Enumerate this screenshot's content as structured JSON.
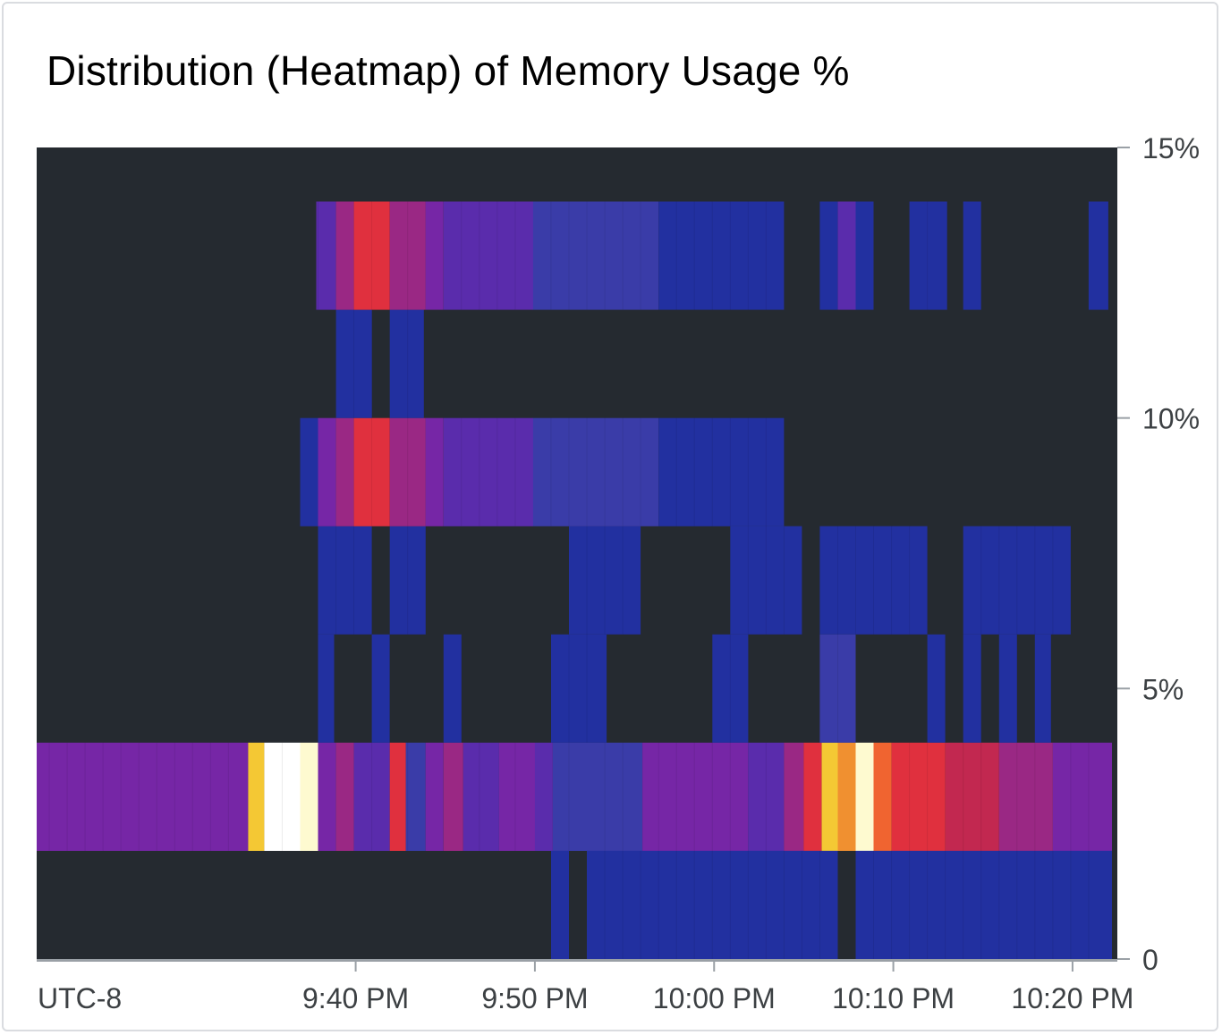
{
  "card": {
    "title": "Distribution (Heatmap) of Memory Usage %"
  },
  "chart_data": {
    "type": "heatmap",
    "title": "Distribution (Heatmap) of Memory Usage %",
    "timezone_label": "UTC-8",
    "x_unit": "minutes since 9:40 PM",
    "x_range": [
      -17.8,
      42.5
    ],
    "x_ticks": [
      {
        "value": 0,
        "label": "9:40 PM"
      },
      {
        "value": 10,
        "label": "9:50 PM"
      },
      {
        "value": 20,
        "label": "10:00 PM"
      },
      {
        "value": 30,
        "label": "10:10 PM"
      },
      {
        "value": 40,
        "label": "10:20 PM"
      }
    ],
    "y_range": [
      0,
      15
    ],
    "y_ticks": [
      {
        "value": 0,
        "label": "0"
      },
      {
        "value": 5,
        "label": "5%"
      },
      {
        "value": 10,
        "label": "10%"
      },
      {
        "value": 15,
        "label": "15%"
      }
    ],
    "y_bins": [
      [
        0,
        2
      ],
      [
        2,
        4
      ],
      [
        4,
        6
      ],
      [
        6,
        8
      ],
      [
        8,
        10
      ],
      [
        10,
        12
      ],
      [
        12,
        14
      ]
    ],
    "colors": {
      "background": "#252a30",
      "axis": "#9aa0a6",
      "blue": "#2230a0",
      "indigo": "#3a3ca8",
      "violet": "#5a2cac",
      "purple": "#7626a6",
      "magenta": "#9a2884",
      "crimson": "#c22850",
      "red": "#e0303e",
      "orange": "#f06430",
      "amber": "#f09030",
      "yellow": "#f4c834",
      "cream": "#fefad0",
      "white": "#ffffff"
    },
    "cells": [
      {
        "bin": 1,
        "x0": -17.8,
        "x1": -6.0,
        "color": "purple"
      },
      {
        "bin": 1,
        "x0": -6.0,
        "x1": -5.1,
        "color": "yellow"
      },
      {
        "bin": 1,
        "x0": -5.1,
        "x1": -3.1,
        "color": "white"
      },
      {
        "bin": 1,
        "x0": -3.1,
        "x1": -2.1,
        "color": "cream"
      },
      {
        "bin": 1,
        "x0": -2.1,
        "x1": -1.1,
        "color": "purple"
      },
      {
        "bin": 1,
        "x0": -1.1,
        "x1": -0.1,
        "color": "magenta"
      },
      {
        "bin": 1,
        "x0": -0.1,
        "x1": 1.9,
        "color": "violet"
      },
      {
        "bin": 1,
        "x0": 1.9,
        "x1": 2.8,
        "color": "red"
      },
      {
        "bin": 1,
        "x0": 2.8,
        "x1": 3.9,
        "color": "indigo"
      },
      {
        "bin": 1,
        "x0": 3.9,
        "x1": 4.9,
        "color": "purple"
      },
      {
        "bin": 1,
        "x0": 4.9,
        "x1": 6.0,
        "color": "magenta"
      },
      {
        "bin": 1,
        "x0": 6.0,
        "x1": 8.0,
        "color": "violet"
      },
      {
        "bin": 1,
        "x0": 8.0,
        "x1": 10.0,
        "color": "purple"
      },
      {
        "bin": 1,
        "x0": 10.0,
        "x1": 11.0,
        "color": "violet"
      },
      {
        "bin": 1,
        "x0": 11.0,
        "x1": 13.0,
        "color": "indigo"
      },
      {
        "bin": 1,
        "x0": 13.0,
        "x1": 16.0,
        "color": "indigo"
      },
      {
        "bin": 1,
        "x0": 16.0,
        "x1": 21.9,
        "color": "purple"
      },
      {
        "bin": 1,
        "x0": 21.9,
        "x1": 23.9,
        "color": "violet"
      },
      {
        "bin": 1,
        "x0": 23.9,
        "x1": 25.0,
        "color": "magenta"
      },
      {
        "bin": 1,
        "x0": 25.0,
        "x1": 26.0,
        "color": "red"
      },
      {
        "bin": 1,
        "x0": 26.0,
        "x1": 26.9,
        "color": "yellow"
      },
      {
        "bin": 1,
        "x0": 26.9,
        "x1": 27.9,
        "color": "amber"
      },
      {
        "bin": 1,
        "x0": 27.9,
        "x1": 28.9,
        "color": "cream"
      },
      {
        "bin": 1,
        "x0": 28.9,
        "x1": 29.9,
        "color": "orange"
      },
      {
        "bin": 1,
        "x0": 29.9,
        "x1": 32.9,
        "color": "red"
      },
      {
        "bin": 1,
        "x0": 32.9,
        "x1": 35.9,
        "color": "crimson"
      },
      {
        "bin": 1,
        "x0": 35.9,
        "x1": 38.9,
        "color": "magenta"
      },
      {
        "bin": 1,
        "x0": 38.9,
        "x1": 42.2,
        "color": "purple"
      },
      {
        "bin": 0,
        "x0": 10.9,
        "x1": 11.9,
        "color": "blue"
      },
      {
        "bin": 0,
        "x0": 12.9,
        "x1": 26.9,
        "color": "blue"
      },
      {
        "bin": 0,
        "x0": 27.9,
        "x1": 42.2,
        "color": "blue"
      },
      {
        "bin": 2,
        "x0": -2.1,
        "x1": -1.2,
        "color": "blue"
      },
      {
        "bin": 2,
        "x0": 0.9,
        "x1": 1.9,
        "color": "blue"
      },
      {
        "bin": 2,
        "x0": 4.9,
        "x1": 5.9,
        "color": "blue"
      },
      {
        "bin": 2,
        "x0": 10.9,
        "x1": 14.0,
        "color": "blue"
      },
      {
        "bin": 2,
        "x0": 19.9,
        "x1": 21.9,
        "color": "blue"
      },
      {
        "bin": 2,
        "x0": 25.9,
        "x1": 27.9,
        "color": "indigo"
      },
      {
        "bin": 2,
        "x0": 31.9,
        "x1": 32.9,
        "color": "blue"
      },
      {
        "bin": 2,
        "x0": 33.9,
        "x1": 34.9,
        "color": "blue"
      },
      {
        "bin": 2,
        "x0": 35.9,
        "x1": 36.9,
        "color": "blue"
      },
      {
        "bin": 2,
        "x0": 37.9,
        "x1": 38.8,
        "color": "blue"
      },
      {
        "bin": 3,
        "x0": -2.1,
        "x1": 0.9,
        "color": "blue"
      },
      {
        "bin": 3,
        "x0": 1.9,
        "x1": 3.9,
        "color": "blue"
      },
      {
        "bin": 3,
        "x0": 11.9,
        "x1": 15.9,
        "color": "blue"
      },
      {
        "bin": 3,
        "x0": 20.9,
        "x1": 24.9,
        "color": "blue"
      },
      {
        "bin": 3,
        "x0": 25.9,
        "x1": 31.9,
        "color": "blue"
      },
      {
        "bin": 3,
        "x0": 33.9,
        "x1": 39.9,
        "color": "blue"
      },
      {
        "bin": 4,
        "x0": -3.1,
        "x1": -2.1,
        "color": "blue"
      },
      {
        "bin": 4,
        "x0": -2.1,
        "x1": -1.1,
        "color": "purple"
      },
      {
        "bin": 4,
        "x0": -1.1,
        "x1": -0.1,
        "color": "magenta"
      },
      {
        "bin": 4,
        "x0": -0.1,
        "x1": 1.9,
        "color": "red"
      },
      {
        "bin": 4,
        "x0": 1.9,
        "x1": 3.9,
        "color": "magenta"
      },
      {
        "bin": 4,
        "x0": 3.9,
        "x1": 4.9,
        "color": "purple"
      },
      {
        "bin": 4,
        "x0": 4.9,
        "x1": 9.9,
        "color": "violet"
      },
      {
        "bin": 4,
        "x0": 9.9,
        "x1": 16.9,
        "color": "indigo"
      },
      {
        "bin": 4,
        "x0": 16.9,
        "x1": 23.9,
        "color": "blue"
      },
      {
        "bin": 5,
        "x0": -1.1,
        "x1": 0.9,
        "color": "blue"
      },
      {
        "bin": 5,
        "x0": 1.9,
        "x1": 3.8,
        "color": "blue"
      },
      {
        "bin": 6,
        "x0": -2.2,
        "x1": -1.1,
        "color": "violet"
      },
      {
        "bin": 6,
        "x0": -1.1,
        "x1": -0.1,
        "color": "magenta"
      },
      {
        "bin": 6,
        "x0": -0.1,
        "x1": 1.9,
        "color": "red"
      },
      {
        "bin": 6,
        "x0": 1.9,
        "x1": 3.9,
        "color": "magenta"
      },
      {
        "bin": 6,
        "x0": 3.9,
        "x1": 4.9,
        "color": "purple"
      },
      {
        "bin": 6,
        "x0": 4.9,
        "x1": 9.9,
        "color": "violet"
      },
      {
        "bin": 6,
        "x0": 9.9,
        "x1": 16.9,
        "color": "indigo"
      },
      {
        "bin": 6,
        "x0": 16.9,
        "x1": 23.9,
        "color": "blue"
      },
      {
        "bin": 6,
        "x0": 25.9,
        "x1": 26.9,
        "color": "blue"
      },
      {
        "bin": 6,
        "x0": 26.9,
        "x1": 27.9,
        "color": "violet"
      },
      {
        "bin": 6,
        "x0": 27.9,
        "x1": 28.9,
        "color": "blue"
      },
      {
        "bin": 6,
        "x0": 30.9,
        "x1": 33.0,
        "color": "blue"
      },
      {
        "bin": 6,
        "x0": 33.9,
        "x1": 34.9,
        "color": "blue"
      },
      {
        "bin": 6,
        "x0": 40.9,
        "x1": 42.0,
        "color": "blue"
      }
    ]
  }
}
